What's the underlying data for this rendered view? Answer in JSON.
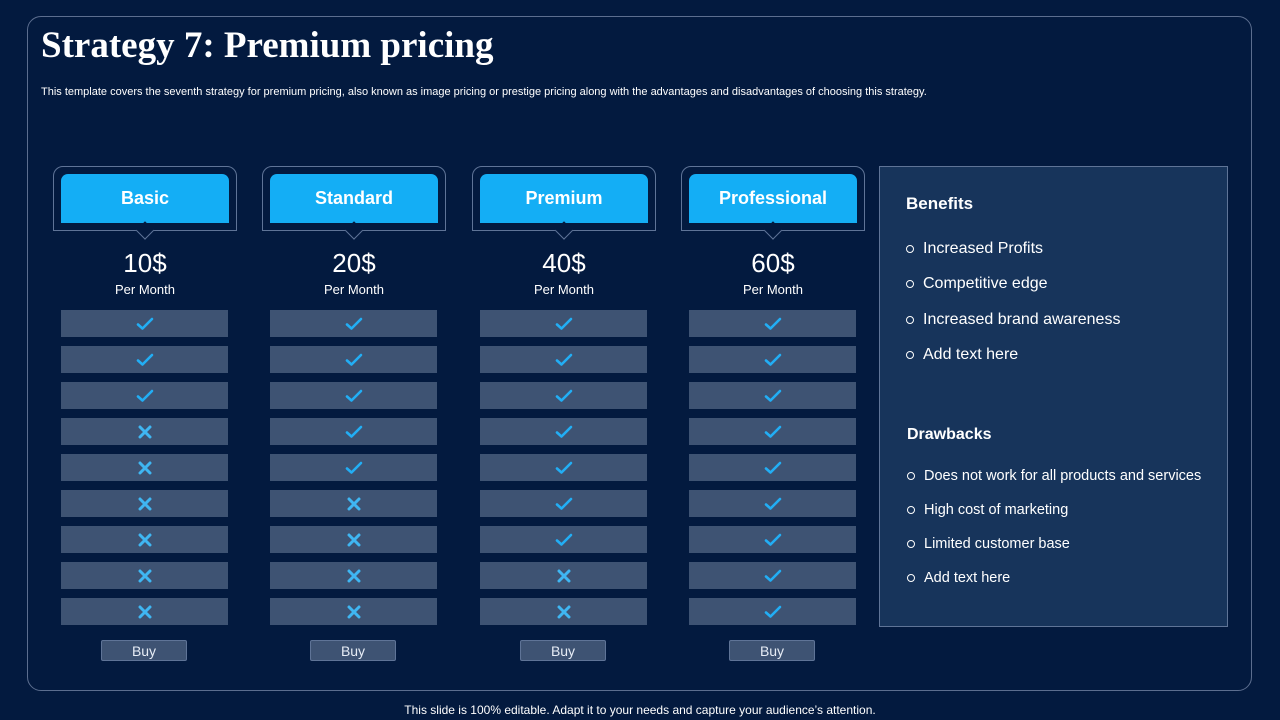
{
  "slide": {
    "title": "Strategy 7: Premium pricing",
    "subtitle": "This template covers the seventh strategy for premium pricing, also known as image pricing or prestige pricing along with the advantages and disadvantages of choosing this strategy.",
    "footer": "This slide is 100% editable. Adapt it to your needs and capture your audience’s attention."
  },
  "colors": {
    "background": "#031a3f",
    "accent": "#14aef5",
    "row": "#3e5373",
    "panel": "#17345b"
  },
  "plans": [
    {
      "name": "Basic",
      "price": "10$",
      "period": "Per Month",
      "buy_label": "Buy",
      "features": [
        true,
        true,
        true,
        false,
        false,
        false,
        false,
        false,
        false
      ]
    },
    {
      "name": "Standard",
      "price": "20$",
      "period": "Per Month",
      "buy_label": "Buy",
      "features": [
        true,
        true,
        true,
        true,
        true,
        false,
        false,
        false,
        false
      ]
    },
    {
      "name": "Premium",
      "price": "40$",
      "period": "Per Month",
      "buy_label": "Buy",
      "features": [
        true,
        true,
        true,
        true,
        true,
        true,
        true,
        false,
        false
      ]
    },
    {
      "name": "Professional",
      "price": "60$",
      "period": "Per Month",
      "buy_label": "Buy",
      "features": [
        true,
        true,
        true,
        true,
        true,
        true,
        true,
        true,
        true
      ]
    }
  ],
  "benefits": {
    "heading": "Benefits",
    "items": [
      "Increased Profits",
      "Competitive edge",
      "Increased brand awareness",
      "Add text here"
    ]
  },
  "drawbacks": {
    "heading": "Drawbacks",
    "items": [
      "Does not work for all products and services",
      "High cost of marketing",
      "Limited customer base",
      "Add text here"
    ]
  },
  "icons": {
    "included": "check-icon",
    "excluded": "cross-icon",
    "bullet": "circle-bullet-icon"
  }
}
